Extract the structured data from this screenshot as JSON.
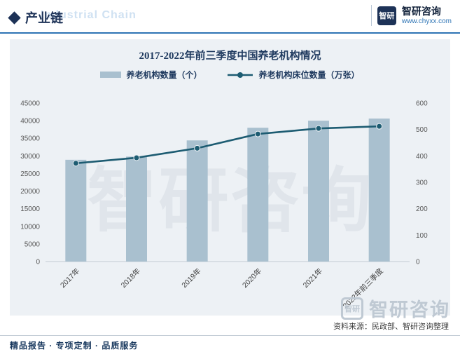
{
  "header": {
    "title": "产业链",
    "watermark": "Industrial Chain",
    "brand": "智研咨询",
    "website": "www.chyxx.com",
    "logo_text": "智研"
  },
  "chart_data": {
    "type": "combo",
    "title": "2017-2022年前三季度中国养老机构情况",
    "categories": [
      "2017年",
      "2018年",
      "2019年",
      "2020年",
      "2021年",
      "2022年前三季度"
    ],
    "series": [
      {
        "name": "养老机构数量（个）",
        "type": "bar",
        "axis": "left",
        "values": [
          28900,
          29800,
          34400,
          38000,
          40000,
          40600
        ],
        "color": "#a9c0cf"
      },
      {
        "name": "养老机构床位数量（万张）",
        "type": "line",
        "axis": "right",
        "values": [
          372,
          393,
          429,
          483,
          504,
          512
        ],
        "color": "#1d5c72"
      }
    ],
    "left_axis": {
      "min": 0,
      "max": 45000,
      "step": 5000
    },
    "right_axis": {
      "min": 0,
      "max": 600,
      "step": 100
    },
    "legend_position": "top",
    "grid": false
  },
  "watermarks": {
    "center": "智研咨询",
    "bottom": "智研咨询",
    "bottom_logo": "智研"
  },
  "source": "资料来源：民政部、智研咨询整理",
  "footer": "精品报告 · 专项定制 · 品质服务",
  "colors": {
    "accent_blue": "#2e74b5",
    "navy": "#1d3257",
    "bar": "#a9c0cf",
    "line": "#1d5c72",
    "panel_bg": "#edf1f5",
    "watermark_gray": "#bfc9d3"
  }
}
